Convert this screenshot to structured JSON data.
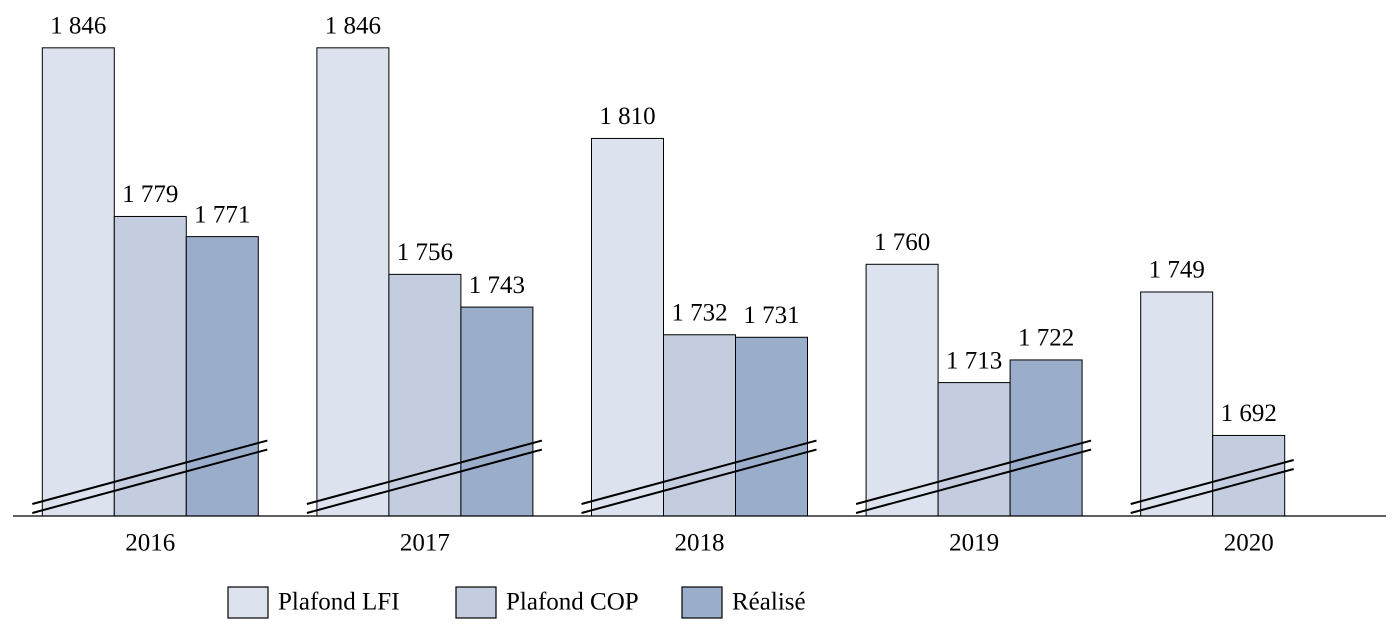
{
  "chart_data": {
    "type": "bar",
    "categories": [
      "2016",
      "2017",
      "2018",
      "2019",
      "2020"
    ],
    "series": [
      {
        "name": "Plafond LFI",
        "color": "#dce3ee",
        "values": [
          1846,
          1846,
          1810,
          1760,
          1749
        ],
        "value_labels": [
          "1 846",
          "1 846",
          "1 810",
          "1 760",
          "1 749"
        ]
      },
      {
        "name": "Plafond COP",
        "color": "#c3cddf",
        "values": [
          1779,
          1756,
          1732,
          1713,
          1692
        ],
        "value_labels": [
          "1 779",
          "1 756",
          "1 732",
          "1 713",
          "1 692"
        ]
      },
      {
        "name": "Réalisé",
        "color": "#9aadcb",
        "values": [
          1771,
          1743,
          1731,
          1722,
          null
        ],
        "value_labels": [
          "1 771",
          "1 743",
          "1 731",
          "1 722",
          null
        ]
      }
    ],
    "ylim": [
      1660,
      1865
    ],
    "legend": "bottom"
  }
}
